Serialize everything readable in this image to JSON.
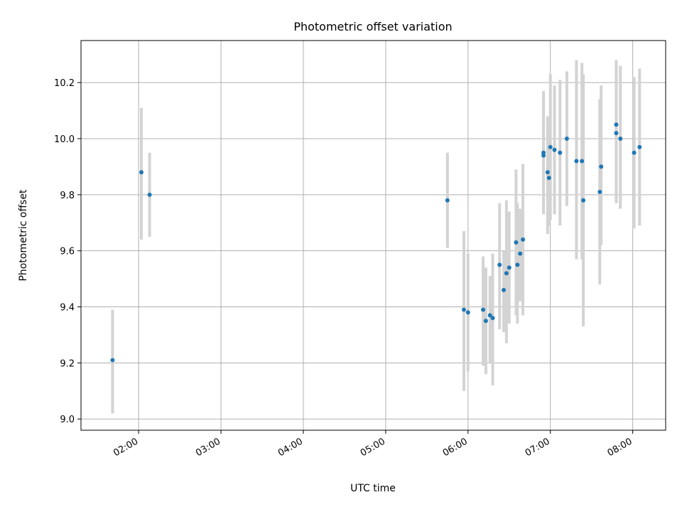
{
  "chart_data": {
    "type": "scatter",
    "title": "Photometric offset variation",
    "xlabel": "UTC time",
    "ylabel": "Photometric offset",
    "x_range": [
      "01:18",
      "08:24"
    ],
    "ylim": [
      8.96,
      10.35
    ],
    "x_ticks": [
      "02:00",
      "03:00",
      "04:00",
      "05:00",
      "06:00",
      "07:00",
      "08:00"
    ],
    "y_ticks": [
      "9.0",
      "9.2",
      "9.4",
      "9.6",
      "9.8",
      "10.0",
      "10.2"
    ],
    "grid": true,
    "marker_color": "#1f77b4",
    "errorbar_color": "#d3d3d3",
    "points": [
      {
        "t": "01:41",
        "y": 9.21,
        "lo": 9.02,
        "hi": 9.39
      },
      {
        "t": "02:02",
        "y": 9.88,
        "lo": 9.64,
        "hi": 10.11
      },
      {
        "t": "02:08",
        "y": 9.8,
        "lo": 9.65,
        "hi": 9.95
      },
      {
        "t": "05:45",
        "y": 9.78,
        "lo": 9.61,
        "hi": 9.95
      },
      {
        "t": "05:57",
        "y": 9.39,
        "lo": 9.1,
        "hi": 9.67
      },
      {
        "t": "06:00",
        "y": 9.38,
        "lo": 9.17,
        "hi": 9.59
      },
      {
        "t": "06:11",
        "y": 9.39,
        "lo": 9.19,
        "hi": 9.58
      },
      {
        "t": "06:13",
        "y": 9.35,
        "lo": 9.16,
        "hi": 9.54
      },
      {
        "t": "06:16",
        "y": 9.37,
        "lo": 9.2,
        "hi": 9.51
      },
      {
        "t": "06:18",
        "y": 9.36,
        "lo": 9.12,
        "hi": 9.59
      },
      {
        "t": "06:23",
        "y": 9.55,
        "lo": 9.32,
        "hi": 9.77
      },
      {
        "t": "06:26",
        "y": 9.46,
        "lo": 9.31,
        "hi": 9.6
      },
      {
        "t": "06:28",
        "y": 9.52,
        "lo": 9.27,
        "hi": 9.78
      },
      {
        "t": "06:30",
        "y": 9.54,
        "lo": 9.34,
        "hi": 9.74
      },
      {
        "t": "06:35",
        "y": 9.63,
        "lo": 9.37,
        "hi": 9.89
      },
      {
        "t": "06:36",
        "y": 9.55,
        "lo": 9.34,
        "hi": 9.77
      },
      {
        "t": "06:38",
        "y": 9.59,
        "lo": 9.42,
        "hi": 9.75
      },
      {
        "t": "06:40",
        "y": 9.64,
        "lo": 9.37,
        "hi": 9.91
      },
      {
        "t": "06:55",
        "y": 9.95,
        "lo": 9.73,
        "hi": 10.17
      },
      {
        "t": "06:55",
        "y": 9.94,
        "lo": 9.76,
        "hi": 10.13
      },
      {
        "t": "06:58",
        "y": 9.88,
        "lo": 9.66,
        "hi": 10.08
      },
      {
        "t": "06:59",
        "y": 9.86,
        "lo": 9.69,
        "hi": 10.04
      },
      {
        "t": "07:00",
        "y": 9.97,
        "lo": 9.71,
        "hi": 10.23
      },
      {
        "t": "07:03",
        "y": 9.96,
        "lo": 9.73,
        "hi": 10.19
      },
      {
        "t": "07:07",
        "y": 9.95,
        "lo": 9.69,
        "hi": 10.21
      },
      {
        "t": "07:12",
        "y": 10.0,
        "lo": 9.76,
        "hi": 10.24
      },
      {
        "t": "07:19",
        "y": 9.92,
        "lo": 9.57,
        "hi": 10.28
      },
      {
        "t": "07:23",
        "y": 9.92,
        "lo": 9.57,
        "hi": 10.27
      },
      {
        "t": "07:24",
        "y": 9.78,
        "lo": 9.33,
        "hi": 10.23
      },
      {
        "t": "07:36",
        "y": 9.81,
        "lo": 9.48,
        "hi": 10.14
      },
      {
        "t": "07:37",
        "y": 9.9,
        "lo": 9.62,
        "hi": 10.19
      },
      {
        "t": "07:48",
        "y": 10.05,
        "lo": 9.78,
        "hi": 10.28
      },
      {
        "t": "07:48",
        "y": 10.02,
        "lo": 9.77,
        "hi": 10.27
      },
      {
        "t": "07:51",
        "y": 10.0,
        "lo": 9.75,
        "hi": 10.26
      },
      {
        "t": "08:01",
        "y": 9.95,
        "lo": 9.68,
        "hi": 10.22
      },
      {
        "t": "08:05",
        "y": 9.97,
        "lo": 9.69,
        "hi": 10.25
      }
    ]
  }
}
